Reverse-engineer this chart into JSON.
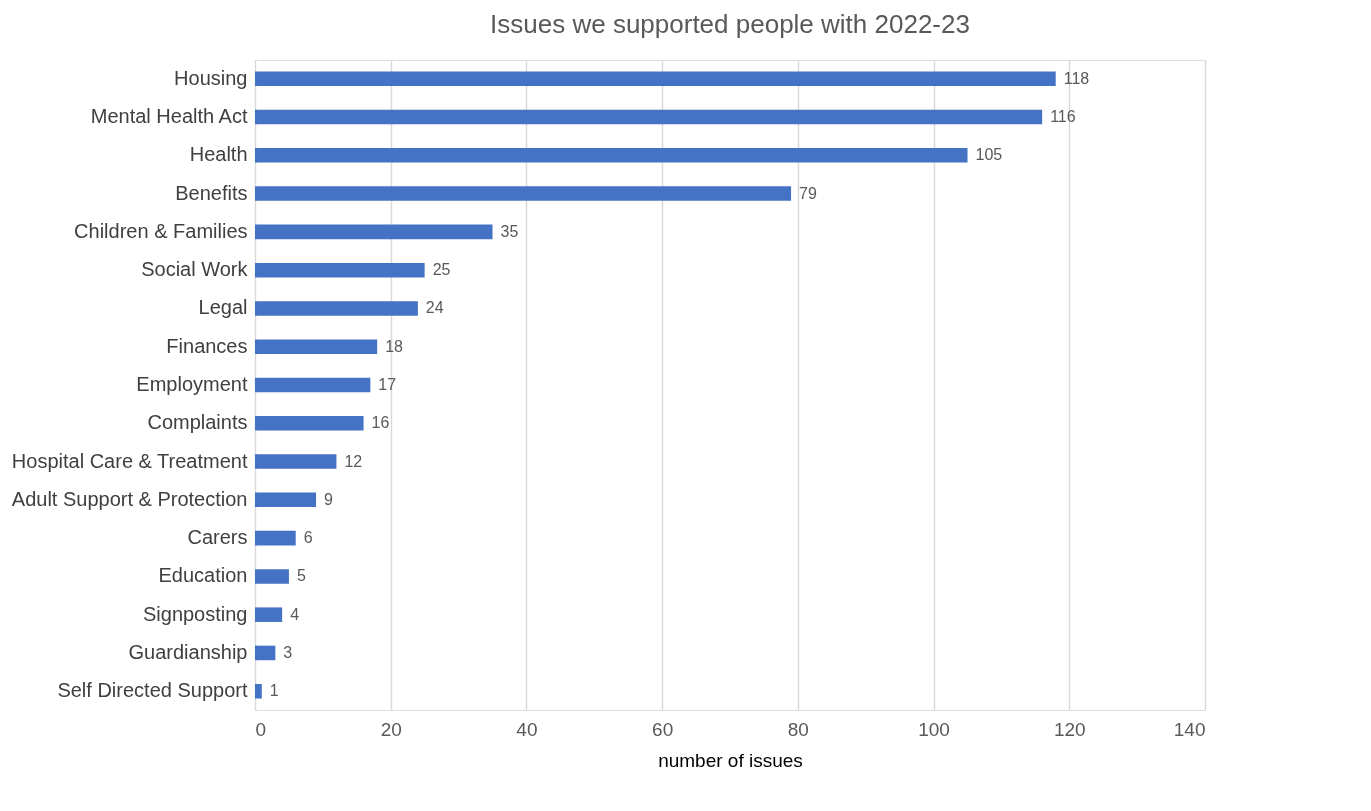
{
  "chart_data": {
    "type": "bar",
    "orientation": "horizontal",
    "title": "Issues we supported people with 2022-23",
    "xlabel": "number of issues",
    "categories": [
      "Housing",
      "Mental Health Act",
      "Health",
      "Benefits",
      "Children & Families",
      "Social Work",
      "Legal",
      "Finances",
      "Employment",
      "Complaints",
      "Hospital Care & Treatment",
      "Adult Support & Protection",
      "Carers",
      "Education",
      "Signposting",
      "Guardianship",
      "Self Directed Support"
    ],
    "values": [
      118,
      116,
      105,
      79,
      35,
      25,
      24,
      18,
      17,
      16,
      12,
      9,
      6,
      5,
      4,
      3,
      1
    ],
    "color": "#4472c4",
    "xlim": [
      0,
      140
    ],
    "xticks": [
      0,
      20,
      40,
      60,
      80,
      100,
      120,
      140
    ],
    "grid": "x",
    "data_labels": true
  }
}
